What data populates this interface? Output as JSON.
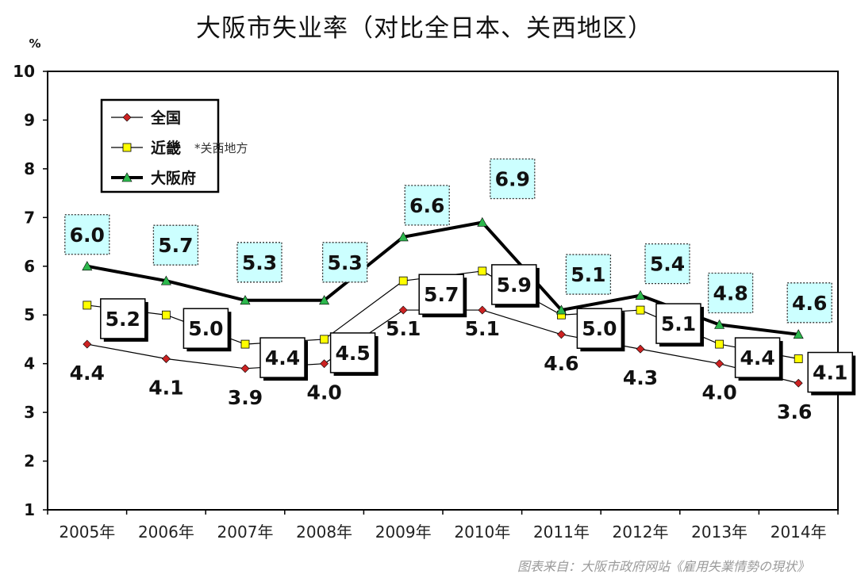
{
  "chart_data": {
    "type": "line",
    "title": "大阪市失业率（对比全日本、关西地区）",
    "unit": "%",
    "ylim": [
      1,
      10
    ],
    "yticks": [
      "1",
      "2",
      "3",
      "4",
      "5",
      "6",
      "7",
      "8",
      "9",
      "10"
    ],
    "categories": [
      "2005年",
      "2006年",
      "2007年",
      "2008年",
      "2009年",
      "2010年",
      "2011年",
      "2012年",
      "2013年",
      "2014年"
    ],
    "series": [
      {
        "name": "全国",
        "values": [
          4.4,
          4.1,
          3.9,
          4.0,
          5.1,
          5.1,
          4.6,
          4.3,
          4.0,
          3.6
        ],
        "labels": [
          "4.4",
          "4.1",
          "3.9",
          "4.0",
          "5.1",
          "5.1",
          "4.6",
          "4.3",
          "4.0",
          "3.6"
        ],
        "color": "#cc2222",
        "marker": "diamond"
      },
      {
        "name": "近畿",
        "note": "*关西地方",
        "values": [
          5.2,
          5.0,
          4.4,
          4.5,
          5.7,
          5.9,
          5.0,
          5.1,
          4.4,
          4.1
        ],
        "labels": [
          "5.2",
          "5.0",
          "4.4",
          "4.5",
          "5.7",
          "5.9",
          "5.0",
          "5.1",
          "4.4",
          "4.1"
        ],
        "color": "#ffff00",
        "marker": "square"
      },
      {
        "name": "大阪府",
        "values": [
          6.0,
          5.7,
          5.3,
          5.3,
          6.6,
          6.9,
          5.1,
          5.4,
          4.8,
          4.6
        ],
        "labels": [
          "6.0",
          "5.7",
          "5.3",
          "5.3",
          "6.6",
          "6.9",
          "5.1",
          "5.4",
          "4.8",
          "4.6"
        ],
        "color": "#2db84d",
        "marker": "triangle"
      }
    ],
    "legend_position": "top-left",
    "grid": false
  },
  "source": "图表来自：大阪市政府网站《雇用失業情勢の現状》",
  "colors": {
    "label_box_fill": "#ccffff",
    "text": "#111111"
  }
}
